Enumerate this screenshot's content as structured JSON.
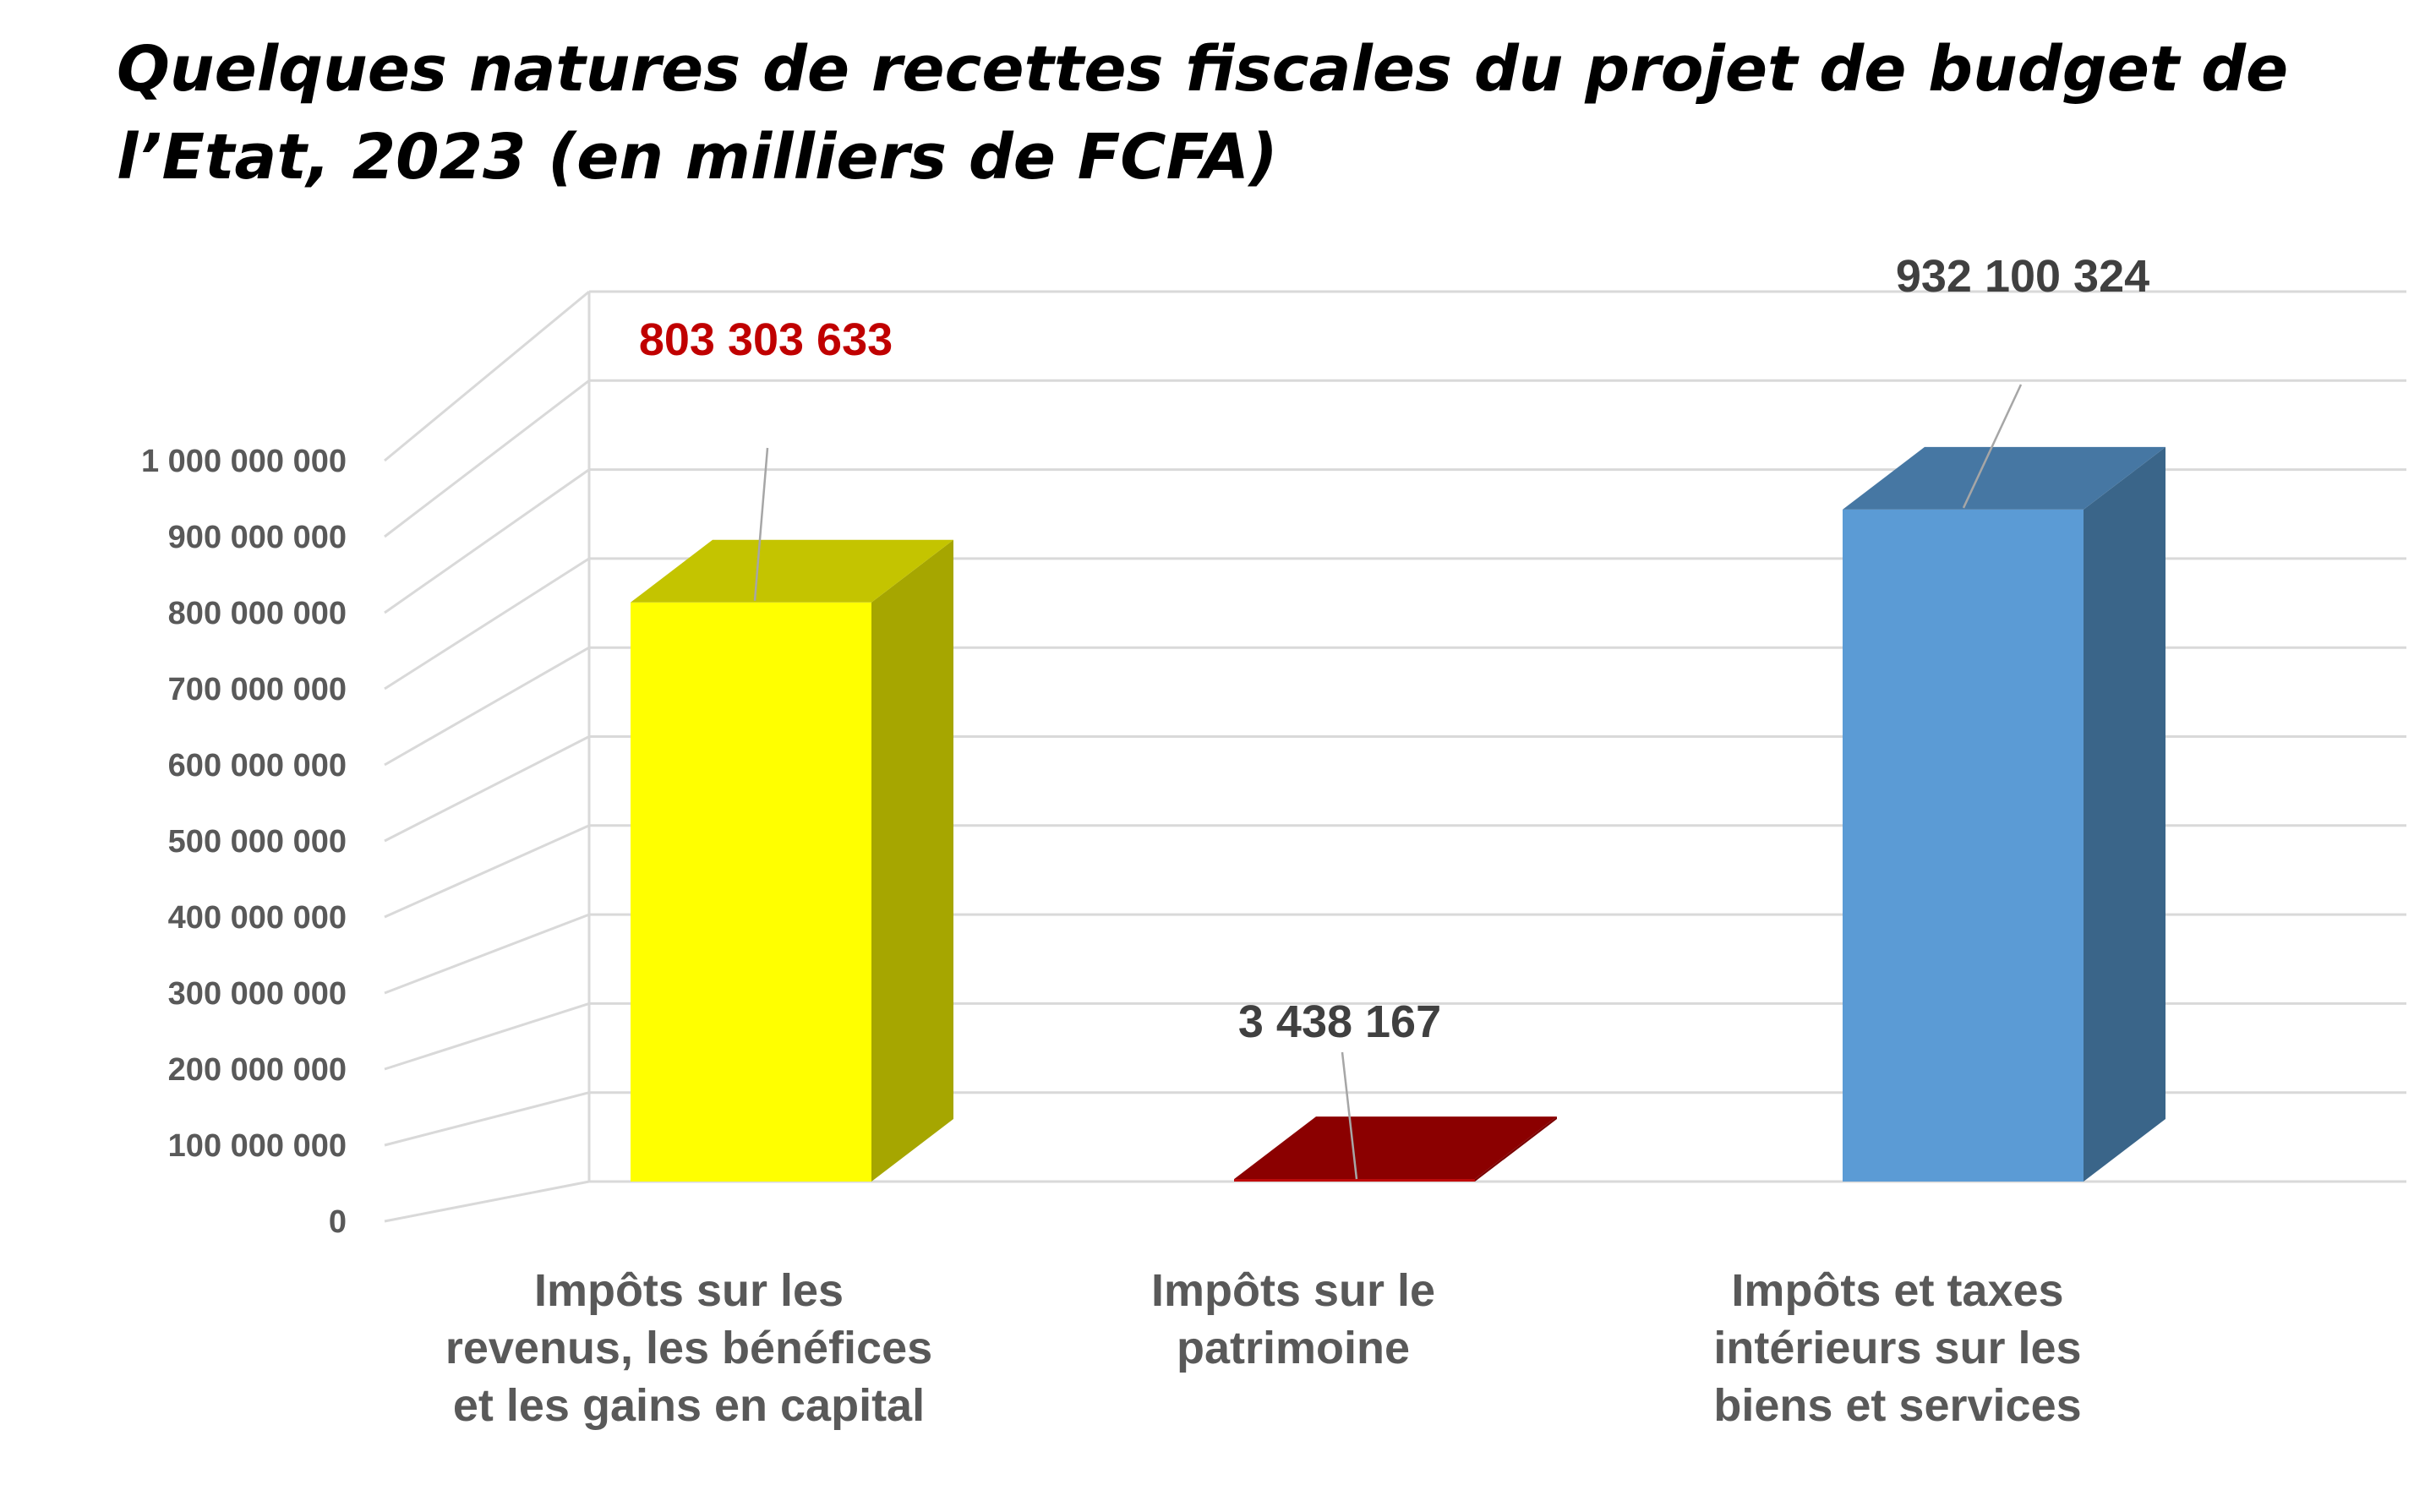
{
  "chart_data": {
    "type": "bar",
    "title": "Quelques natures de recettes fiscales du projet de budget de l’Etat, 2023 (en milliers de FCFA)",
    "categories": [
      [
        "Impôts sur les",
        "revenus, les bénéfices",
        "et les gains en capital"
      ],
      [
        "Impôts sur le",
        "patrimoine"
      ],
      [
        "Impôts et taxes",
        "intérieurs sur les",
        "biens et services"
      ]
    ],
    "values": [
      803303633,
      3438167,
      932100324
    ],
    "data_labels": [
      "803 303 633",
      "3 438 167",
      "932 100 324"
    ],
    "data_label_colors": [
      "#C00000",
      "#404040",
      "#404040"
    ],
    "bar_colors": [
      {
        "front": "#FFFF00",
        "side": "#A6A600",
        "top": "#C4C400"
      },
      {
        "front": "#C00000",
        "side": "#7A0000",
        "top": "#8B0000"
      },
      {
        "front": "#5B9BD5",
        "side": "#3A6589",
        "top": "#4677A3"
      }
    ],
    "ylim": [
      0,
      1000000000
    ],
    "yticks": [
      0,
      100000000,
      200000000,
      300000000,
      400000000,
      500000000,
      600000000,
      700000000,
      800000000,
      900000000,
      1000000000
    ],
    "ytick_labels": [
      "0",
      "100 000 000",
      "200 000 000",
      "300 000 000",
      "400 000 000",
      "500 000 000",
      "600 000 000",
      "700 000 000",
      "800 000 000",
      "900 000 000",
      "1 000 000 000"
    ],
    "grid": true,
    "projection": "3d",
    "xlabel": "",
    "ylabel": ""
  }
}
